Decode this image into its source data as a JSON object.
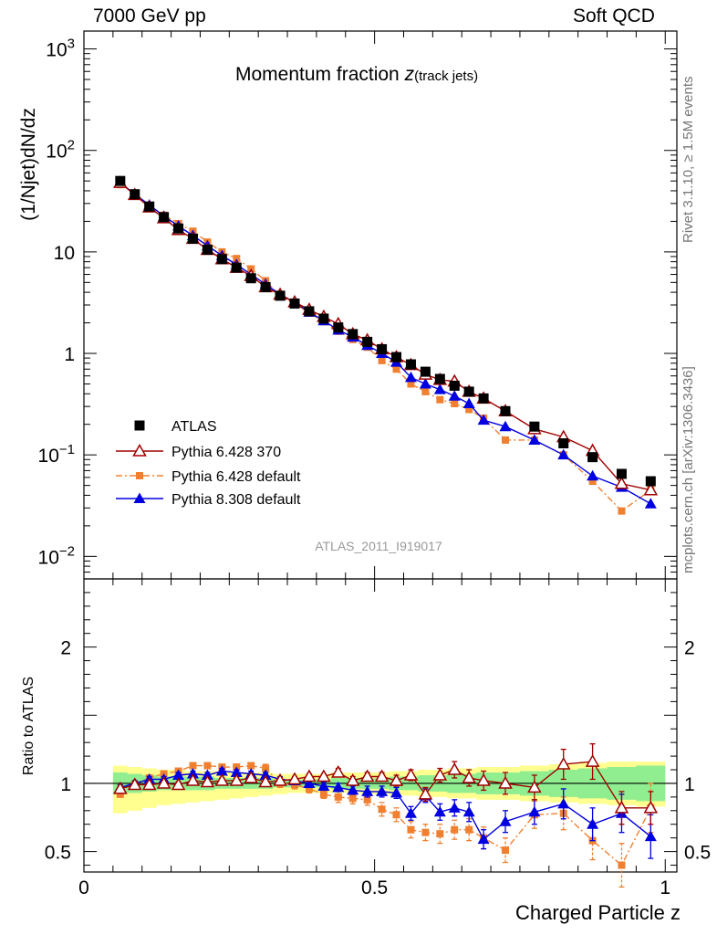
{
  "header": {
    "left": "7000 GeV pp",
    "right": "Soft QCD"
  },
  "side_notes": {
    "rivet": "Rivet 3.1.10, ≥ 1.5M events",
    "source": "mcplots.cern.ch [arXiv:1306.3436]"
  },
  "colors": {
    "data": "#000000",
    "pythia6_370": "#a00000",
    "pythia6_default": "#f08030",
    "pythia8_default": "#0000e0",
    "band_inner": "#90ee90",
    "band_outer": "#ffff90"
  },
  "chart_data": [
    {
      "type": "line",
      "title": "Momentum fraction z(track jets)",
      "title_main": "Momentum fraction ",
      "title_z": "z",
      "title_sub": "(track jets)",
      "ylabel": "(1/Njet)dN/dz",
      "yscale": "log",
      "ylim": [
        0.006,
        1500
      ],
      "xlim": [
        0,
        1.02
      ],
      "watermark": "ATLAS_2011_I919017",
      "ytick_labels": [
        {
          "v": 1000,
          "base": "10",
          "exp": "3"
        },
        {
          "v": 100,
          "base": "10",
          "exp": "2"
        },
        {
          "v": 10,
          "base": "10",
          "exp": ""
        },
        {
          "v": 1,
          "base": "1",
          "exp": ""
        },
        {
          "v": 0.1,
          "base": "10",
          "exp": "−1"
        },
        {
          "v": 0.01,
          "base": "10",
          "exp": "−2"
        }
      ],
      "legend": [
        "ATLAS",
        "Pythia 6.428 370",
        "Pythia 6.428 default",
        "Pythia 8.308 default"
      ],
      "x": [
        0.0625,
        0.0875,
        0.1125,
        0.1375,
        0.1625,
        0.1875,
        0.2125,
        0.2375,
        0.2625,
        0.2875,
        0.3125,
        0.3375,
        0.3625,
        0.3875,
        0.4125,
        0.4375,
        0.4625,
        0.4875,
        0.5125,
        0.5375,
        0.5625,
        0.5875,
        0.6125,
        0.6375,
        0.6625,
        0.6875,
        0.725,
        0.775,
        0.825,
        0.875,
        0.925,
        0.975
      ],
      "series": [
        {
          "name": "ATLAS",
          "values": [
            50,
            37,
            28,
            22,
            17,
            13.5,
            10.5,
            8.5,
            7,
            5.5,
            4.5,
            3.7,
            3.1,
            2.6,
            2.2,
            1.8,
            1.55,
            1.3,
            1.1,
            0.92,
            0.78,
            0.66,
            0.56,
            0.48,
            0.42,
            0.36,
            0.27,
            0.19,
            0.13,
            0.095,
            0.065,
            0.055
          ]
        },
        {
          "name": "Pythia 6.428 370",
          "values": [
            48,
            36.5,
            27.5,
            21.5,
            16.5,
            13.5,
            10.5,
            8.5,
            7,
            5.8,
            4.5,
            3.8,
            3.2,
            2.7,
            2.3,
            1.95,
            1.55,
            1.35,
            1.1,
            0.92,
            0.77,
            0.62,
            0.55,
            0.53,
            0.42,
            0.36,
            0.27,
            0.18,
            0.15,
            0.11,
            0.052,
            0.045
          ]
        },
        {
          "name": "Pythia 6.428 default",
          "values": [
            46,
            38,
            28.5,
            23,
            19,
            16,
            12.5,
            10,
            8.6,
            6.8,
            5.2,
            3.7,
            3.1,
            2.5,
            2.05,
            1.65,
            1.37,
            1.15,
            0.85,
            0.7,
            0.5,
            0.42,
            0.35,
            0.32,
            0.28,
            0.23,
            0.14,
            0.14,
            0.1,
            0.055,
            0.028,
            0.045
          ]
        },
        {
          "name": "Pythia 8.308 default",
          "values": [
            48,
            37,
            29,
            22.5,
            18,
            14.5,
            11.5,
            9.2,
            7.5,
            6,
            4.8,
            3.8,
            3.2,
            2.55,
            2.1,
            1.7,
            1.45,
            1.2,
            1.0,
            0.82,
            0.58,
            0.5,
            0.44,
            0.38,
            0.32,
            0.22,
            0.19,
            0.14,
            0.1,
            0.062,
            0.048,
            0.033
          ]
        }
      ]
    },
    {
      "type": "line",
      "ylabel": "Ratio to ATLAS",
      "xlabel": "Charged Particle z",
      "ylim": [
        0.35,
        2.5
      ],
      "xlim": [
        0,
        1.02
      ],
      "yticks": [
        2,
        1,
        0.5
      ],
      "ytick_labels": [
        "2",
        "1",
        "0.5"
      ],
      "xticks": [
        0,
        0.5,
        1
      ],
      "xtick_labels": [
        "0",
        "0.5",
        "1"
      ],
      "x": [
        0.0625,
        0.0875,
        0.1125,
        0.1375,
        0.1625,
        0.1875,
        0.2125,
        0.2375,
        0.2625,
        0.2875,
        0.3125,
        0.3375,
        0.3625,
        0.3875,
        0.4125,
        0.4375,
        0.4625,
        0.4875,
        0.5125,
        0.5375,
        0.5625,
        0.5875,
        0.6125,
        0.6375,
        0.6625,
        0.6875,
        0.725,
        0.775,
        0.825,
        0.875,
        0.925,
        0.975
      ],
      "band_edges": [
        0.05,
        0.075,
        0.1,
        0.125,
        0.15,
        0.175,
        0.2,
        0.225,
        0.25,
        0.275,
        0.3,
        0.325,
        0.35,
        0.375,
        0.4,
        0.425,
        0.45,
        0.475,
        0.5,
        0.525,
        0.55,
        0.575,
        0.6,
        0.625,
        0.65,
        0.675,
        0.7,
        0.75,
        0.8,
        0.85,
        0.9,
        0.95,
        1.0
      ],
      "band_inner_lo": [
        0.92,
        0.93,
        0.94,
        0.95,
        0.95,
        0.95,
        0.95,
        0.96,
        0.96,
        0.96,
        0.96,
        0.97,
        0.97,
        0.97,
        0.97,
        0.96,
        0.96,
        0.96,
        0.96,
        0.95,
        0.95,
        0.94,
        0.94,
        0.93,
        0.93,
        0.92,
        0.92,
        0.91,
        0.9,
        0.89,
        0.88,
        0.87
      ],
      "band_inner_hi": [
        1.08,
        1.07,
        1.06,
        1.05,
        1.05,
        1.05,
        1.05,
        1.04,
        1.04,
        1.04,
        1.04,
        1.03,
        1.03,
        1.03,
        1.03,
        1.04,
        1.04,
        1.04,
        1.04,
        1.05,
        1.05,
        1.06,
        1.06,
        1.07,
        1.07,
        1.08,
        1.08,
        1.09,
        1.1,
        1.11,
        1.12,
        1.13
      ],
      "band_outer_lo": [
        0.78,
        0.8,
        0.82,
        0.84,
        0.85,
        0.86,
        0.87,
        0.88,
        0.89,
        0.9,
        0.91,
        0.92,
        0.93,
        0.93,
        0.93,
        0.93,
        0.93,
        0.92,
        0.92,
        0.91,
        0.91,
        0.9,
        0.9,
        0.89,
        0.89,
        0.88,
        0.88,
        0.87,
        0.86,
        0.85,
        0.84,
        0.83
      ],
      "band_outer_hi": [
        1.13,
        1.12,
        1.11,
        1.1,
        1.1,
        1.09,
        1.09,
        1.09,
        1.08,
        1.08,
        1.08,
        1.07,
        1.07,
        1.07,
        1.07,
        1.08,
        1.08,
        1.08,
        1.08,
        1.09,
        1.09,
        1.1,
        1.1,
        1.11,
        1.11,
        1.12,
        1.12,
        1.13,
        1.14,
        1.15,
        1.16,
        1.16
      ],
      "series": [
        {
          "name": "Pythia 6.428 370",
          "values": [
            0.96,
            0.99,
            0.99,
            1.0,
            0.99,
            1.02,
            1.01,
            1.02,
            1.02,
            1.04,
            1.01,
            1.02,
            1.03,
            1.05,
            1.05,
            1.08,
            1.02,
            1.05,
            1.05,
            1.02,
            1.06,
            0.92,
            1.06,
            1.1,
            1.04,
            1.02,
            1.0,
            0.97,
            1.14,
            1.16,
            0.82,
            0.82
          ],
          "err": [
            0.02,
            0.02,
            0.02,
            0.02,
            0.02,
            0.02,
            0.02,
            0.02,
            0.02,
            0.02,
            0.02,
            0.02,
            0.02,
            0.02,
            0.02,
            0.03,
            0.03,
            0.03,
            0.03,
            0.04,
            0.04,
            0.05,
            0.05,
            0.06,
            0.06,
            0.07,
            0.08,
            0.09,
            0.11,
            0.13,
            0.12,
            0.12
          ]
        },
        {
          "name": "Pythia 6.428 default",
          "values": [
            0.92,
            0.99,
            1.04,
            1.07,
            1.09,
            1.13,
            1.13,
            1.12,
            1.12,
            1.13,
            1.11,
            1.0,
            0.99,
            0.96,
            0.92,
            0.9,
            0.89,
            0.88,
            0.81,
            0.77,
            0.66,
            0.64,
            0.63,
            0.66,
            0.66,
            0.6,
            0.51,
            0.77,
            0.78,
            0.58,
            0.4,
            0.82
          ],
          "err": [
            0.02,
            0.02,
            0.02,
            0.02,
            0.02,
            0.02,
            0.02,
            0.02,
            0.02,
            0.02,
            0.03,
            0.03,
            0.03,
            0.03,
            0.03,
            0.04,
            0.04,
            0.04,
            0.05,
            0.05,
            0.06,
            0.06,
            0.07,
            0.07,
            0.08,
            0.08,
            0.09,
            0.1,
            0.12,
            0.14,
            0.16,
            0.18
          ]
        },
        {
          "name": "Pythia 8.308 default",
          "values": [
            0.97,
            1.0,
            1.03,
            1.03,
            1.06,
            1.07,
            1.06,
            1.09,
            1.08,
            1.07,
            1.06,
            1.03,
            1.02,
            1.0,
            0.98,
            0.97,
            0.95,
            0.94,
            0.94,
            0.93,
            0.78,
            0.91,
            0.79,
            0.82,
            0.79,
            0.59,
            0.72,
            0.79,
            0.85,
            0.7,
            0.78,
            0.61
          ],
          "err": [
            0.02,
            0.02,
            0.02,
            0.02,
            0.02,
            0.02,
            0.02,
            0.02,
            0.02,
            0.02,
            0.02,
            0.02,
            0.02,
            0.03,
            0.03,
            0.03,
            0.03,
            0.04,
            0.04,
            0.04,
            0.05,
            0.05,
            0.06,
            0.06,
            0.07,
            0.07,
            0.08,
            0.09,
            0.11,
            0.12,
            0.14,
            0.16
          ]
        }
      ]
    }
  ]
}
